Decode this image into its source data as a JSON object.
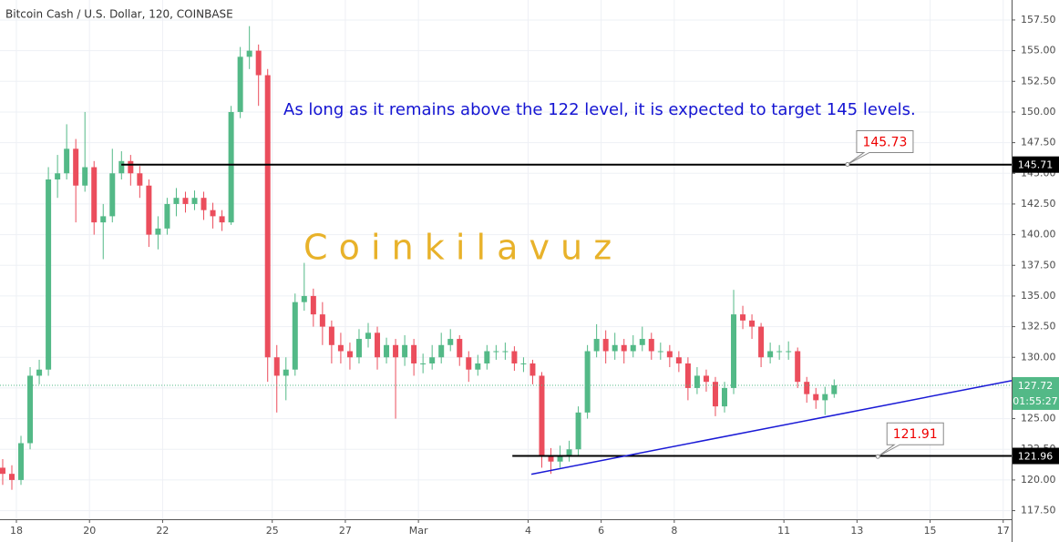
{
  "chart_data": {
    "type": "candlestick",
    "title": "Bitcoin Cash / U.S. Dollar, 120, COINBASE",
    "annotation": "As long as it remains above the 122 level, it is expected to target 145 levels.",
    "watermark": "C o i n k i l a v u z",
    "x": [
      -0.375,
      -0.125,
      0.125,
      0.375,
      0.625,
      0.875,
      1.125,
      1.375,
      1.625,
      1.875,
      2.125,
      2.375,
      2.625,
      2.875,
      3.125,
      3.375,
      3.625,
      3.875,
      4.125,
      4.375,
      4.625,
      4.875,
      5.125,
      5.375,
      5.625,
      5.875,
      6.125,
      6.375,
      6.625,
      6.875,
      7.125,
      7.375,
      7.625,
      7.875,
      8.125,
      8.375,
      8.625,
      8.875,
      9.125,
      9.375,
      9.625,
      9.875,
      10.125,
      10.375,
      10.625,
      10.875,
      11.125,
      11.375,
      11.625,
      11.875,
      12.125,
      12.375,
      12.625,
      12.875,
      13.125,
      13.375,
      13.625,
      13.875,
      14.125,
      14.375,
      14.625,
      14.875,
      15.125,
      15.375,
      15.625,
      15.875,
      16.125,
      16.375,
      16.625,
      16.875,
      17.125,
      17.375,
      17.625,
      17.875,
      18.125,
      18.375,
      18.625,
      18.875,
      19.125,
      19.375,
      19.625,
      19.875,
      20.125,
      20.375,
      20.625,
      20.875,
      21.125,
      21.375,
      21.625,
      21.875,
      22.125,
      22.375
    ],
    "open": [
      121,
      120.5,
      120,
      123,
      128.5,
      129,
      144.5,
      145,
      147,
      144,
      145.5,
      141,
      141.5,
      145,
      146,
      145,
      144,
      140,
      140.5,
      142.5,
      143,
      142.5,
      143,
      142,
      141.5,
      141,
      150,
      154.5,
      155,
      153,
      130,
      128.5,
      129,
      134.5,
      135,
      133.5,
      132.5,
      131,
      130.5,
      130,
      131.5,
      132,
      130,
      131,
      130,
      131,
      129.5,
      129.5,
      130,
      131,
      131.5,
      130,
      129,
      129.5,
      130.5,
      130.5,
      130.5,
      129.5,
      129.5,
      128.5,
      122,
      121.5,
      122,
      122.5,
      125.5,
      130.5,
      131.5,
      130.5,
      131,
      130.5,
      131,
      131.5,
      130.5,
      130.5,
      130,
      129.5,
      127.5,
      128.5,
      128,
      126,
      127.5,
      133.5,
      133,
      132.5,
      130,
      130.5,
      130.5,
      130.5,
      128,
      127,
      126.5,
      127
    ],
    "high": [
      121.7,
      121.2,
      123.6,
      129.2,
      129.8,
      145.5,
      146.5,
      149,
      147.8,
      150,
      146,
      142.5,
      147,
      146.8,
      146.5,
      145.6,
      144.5,
      141.5,
      143,
      143.8,
      143.5,
      143.6,
      143.5,
      142.6,
      142,
      150.5,
      155.3,
      157,
      155.5,
      153.5,
      131,
      130,
      135.2,
      137.7,
      135.6,
      134.5,
      133,
      132,
      131.2,
      132.3,
      132.8,
      132.5,
      131.6,
      131.5,
      131.8,
      131.5,
      130.3,
      131,
      132,
      132.3,
      131.8,
      130.5,
      130.2,
      131,
      131,
      131.2,
      130.9,
      130,
      129.8,
      128.8,
      122.6,
      122.8,
      123.2,
      126,
      131,
      132.7,
      132.2,
      132,
      131.5,
      131.8,
      132.5,
      132,
      131.2,
      131,
      130.5,
      130,
      129.2,
      129,
      128.4,
      128,
      135.5,
      134.2,
      133.5,
      132.8,
      131.2,
      131,
      131.3,
      130.8,
      128.4,
      127.5,
      127.6,
      128.2
    ],
    "low": [
      119.6,
      119.2,
      119.6,
      122.5,
      127.8,
      128.5,
      143,
      144.5,
      141,
      143.5,
      140,
      138,
      141,
      144.5,
      144,
      143,
      139,
      138.8,
      140,
      141.5,
      141.8,
      142,
      141.2,
      140.5,
      140.3,
      140.8,
      149.5,
      153.5,
      150.5,
      128,
      125.5,
      126.5,
      128.5,
      133.8,
      132.5,
      131,
      129.5,
      129.5,
      129,
      129.5,
      130.8,
      129,
      129.5,
      125,
      129.3,
      128.5,
      128.7,
      129,
      129.5,
      130.5,
      129.3,
      128,
      128.5,
      129,
      129.8,
      129.8,
      128.9,
      128.8,
      127.8,
      121,
      120.5,
      121,
      121.5,
      122,
      125,
      130,
      129.5,
      129.8,
      129.5,
      130,
      130.5,
      129.8,
      129.8,
      129.2,
      128.8,
      126.5,
      127,
      127.2,
      125.2,
      125.5,
      127,
      132.3,
      131.5,
      129.2,
      129.5,
      129.8,
      129.8,
      127.5,
      126.3,
      125.8,
      125.3,
      126.7
    ],
    "close": [
      120.5,
      120,
      123,
      128.5,
      129,
      144.5,
      145,
      147,
      144,
      145.5,
      141,
      141.5,
      145,
      146,
      145,
      144,
      140,
      140.5,
      142.5,
      143,
      142.5,
      143,
      142,
      141.5,
      141,
      150,
      154.5,
      155,
      153,
      130,
      128.5,
      129,
      134.5,
      135,
      133.5,
      132.5,
      131,
      130.5,
      130,
      131.5,
      132,
      130,
      131,
      130,
      131,
      129.5,
      129.5,
      130,
      131,
      131.5,
      130,
      129,
      129.5,
      130.5,
      130.5,
      130.5,
      129.5,
      129.5,
      128.5,
      122,
      121.5,
      122,
      122.5,
      125.5,
      130.5,
      131.5,
      130.5,
      131,
      130.5,
      131,
      131.5,
      130.5,
      130.5,
      130,
      129.5,
      127.5,
      128.5,
      128,
      126,
      127.5,
      133.5,
      133,
      132.5,
      130,
      130.5,
      130.5,
      130.5,
      128,
      127,
      126.5,
      127,
      127.72
    ],
    "up_color": "#53b987",
    "down_color": "#eb4d5c",
    "xlim": [
      -0.449,
      27.23
    ],
    "ylim": [
      116.8,
      159.13
    ],
    "grid": true,
    "xticks": [
      {
        "value": 0,
        "label": "18"
      },
      {
        "value": 2,
        "label": "20"
      },
      {
        "value": 4,
        "label": "22"
      },
      {
        "value": 7,
        "label": "25"
      },
      {
        "value": 9,
        "label": "27"
      },
      {
        "value": 11,
        "label": "Mar"
      },
      {
        "value": 14,
        "label": "4"
      },
      {
        "value": 16,
        "label": "6"
      },
      {
        "value": 18,
        "label": "8"
      },
      {
        "value": 21,
        "label": "11"
      },
      {
        "value": 23,
        "label": "13"
      },
      {
        "value": 25,
        "label": "15"
      },
      {
        "value": 27,
        "label": "17"
      }
    ],
    "yticks": [
      {
        "value": 117.5,
        "label": "117.50"
      },
      {
        "value": 120,
        "label": "120.00"
      },
      {
        "value": 122.5,
        "label": "122.50"
      },
      {
        "value": 125,
        "label": "125.00"
      },
      {
        "value": 127.5,
        "label": "127.50"
      },
      {
        "value": 130,
        "label": "130.00"
      },
      {
        "value": 132.5,
        "label": "132.50"
      },
      {
        "value": 135,
        "label": "135.00"
      },
      {
        "value": 137.5,
        "label": "137.50"
      },
      {
        "value": 140,
        "label": "140.00"
      },
      {
        "value": 142.5,
        "label": "142.50"
      },
      {
        "value": 145,
        "label": "145.00"
      },
      {
        "value": 147.5,
        "label": "147.50"
      },
      {
        "value": 150,
        "label": "150.00"
      },
      {
        "value": 152.5,
        "label": "152.50"
      },
      {
        "value": 155,
        "label": "155.00"
      },
      {
        "value": 157.5,
        "label": "157.50"
      }
    ],
    "horizontal_lines": [
      {
        "y": 145.71,
        "x_start": 2.87,
        "color": "#000000"
      },
      {
        "y": 121.96,
        "x_start": 13.57,
        "color": "#000000"
      }
    ],
    "trend_line": {
      "x": [
        14.09,
        27.23
      ],
      "y": [
        120.47,
        128.1
      ],
      "color": "#1a1ad6"
    },
    "current_price": {
      "value": 127.72,
      "color": "#53b987",
      "countdown": "01:55:27"
    },
    "price_labels": [
      {
        "value": 145.71,
        "color": "#000000"
      },
      {
        "value": 121.96,
        "color": "#000000"
      }
    ],
    "callouts": [
      {
        "x": 22.74,
        "y": 145.73
      },
      {
        "x": 23.57,
        "y": 121.91
      }
    ]
  }
}
